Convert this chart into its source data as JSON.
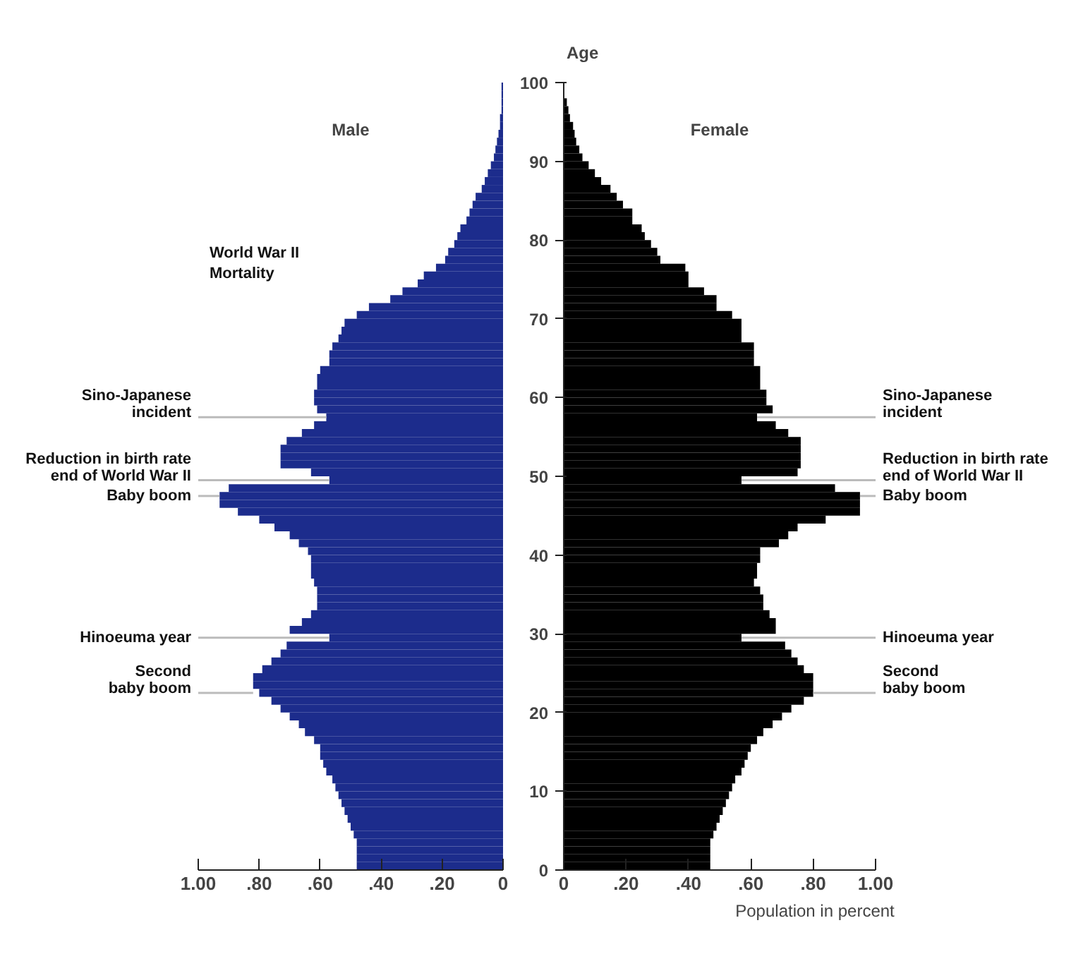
{
  "chart_data": [
    {
      "type": "bar",
      "orientation": "horizontal",
      "title": "Male",
      "color": "#1c2c8c",
      "tick_labels": "x",
      "x": [
        0,
        1,
        2,
        3,
        4,
        5,
        6,
        7,
        8,
        9,
        10,
        11,
        12,
        13,
        14,
        15,
        16,
        17,
        18,
        19,
        20,
        21,
        22,
        23,
        24,
        25,
        26,
        27,
        28,
        29,
        30,
        31,
        32,
        33,
        34,
        35,
        36,
        37,
        38,
        39,
        40,
        41,
        42,
        43,
        44,
        45,
        46,
        47,
        48,
        49,
        50,
        51,
        52,
        53,
        54,
        55,
        56,
        57,
        58,
        59,
        60,
        61,
        62,
        63,
        64,
        65,
        66,
        67,
        68,
        69,
        70,
        71,
        72,
        73,
        74,
        75,
        76,
        77,
        78,
        79,
        80,
        81,
        82,
        83,
        84,
        85,
        86,
        87,
        88,
        89,
        90,
        91,
        92,
        93,
        94,
        95,
        96,
        97,
        98,
        99
      ],
      "values": [
        0.48,
        0.48,
        0.48,
        0.48,
        0.49,
        0.5,
        0.51,
        0.52,
        0.53,
        0.54,
        0.55,
        0.56,
        0.58,
        0.59,
        0.6,
        0.6,
        0.62,
        0.65,
        0.67,
        0.7,
        0.73,
        0.76,
        0.8,
        0.82,
        0.82,
        0.79,
        0.76,
        0.73,
        0.71,
        0.57,
        0.7,
        0.66,
        0.63,
        0.61,
        0.61,
        0.61,
        0.62,
        0.63,
        0.63,
        0.63,
        0.64,
        0.67,
        0.7,
        0.75,
        0.8,
        0.87,
        0.93,
        0.93,
        0.9,
        0.57,
        0.63,
        0.73,
        0.73,
        0.73,
        0.71,
        0.66,
        0.62,
        0.58,
        0.61,
        0.62,
        0.62,
        0.61,
        0.61,
        0.6,
        0.57,
        0.57,
        0.56,
        0.54,
        0.53,
        0.52,
        0.48,
        0.44,
        0.37,
        0.33,
        0.28,
        0.26,
        0.22,
        0.19,
        0.18,
        0.16,
        0.15,
        0.14,
        0.12,
        0.11,
        0.1,
        0.09,
        0.07,
        0.06,
        0.05,
        0.04,
        0.03,
        0.025,
        0.02,
        0.015,
        0.01,
        0.01,
        0.005,
        0.005,
        0.005,
        0.005
      ],
      "xlim": [
        1.0,
        0
      ],
      "xticks": [
        {
          "value": 1.0,
          "label": "1.00"
        },
        {
          "value": 0.8,
          "label": ".80"
        },
        {
          "value": 0.6,
          "label": ".60"
        },
        {
          "value": 0.4,
          "label": ".40"
        },
        {
          "value": 0.2,
          "label": ".20"
        },
        0
      ],
      "ylim": [
        0,
        100
      ],
      "yticks": [
        0,
        10,
        20,
        30,
        40,
        50,
        60,
        70,
        80,
        90,
        100
      ],
      "annotations": [
        "World War II\nMortality",
        {
          "text": "Sino-Japanese\nincident",
          "x": 0.58,
          "y": 57
        },
        {
          "text": "Reduction in birth rate\nend of World War II",
          "x": 0.57,
          "y": 49
        },
        {
          "text": "Baby boom",
          "x": 0.93,
          "y": 47
        },
        {
          "text": "Hinoeuma year",
          "x": 0.57,
          "y": 29
        },
        {
          "text": "Second\nbaby boom",
          "x": 0.82,
          "y": 22
        }
      ]
    },
    {
      "type": "bar",
      "orientation": "horizontal",
      "title": "Female",
      "color": "#000000",
      "ylabel": "Age",
      "xlabel": "Population in percent",
      "x": [
        0,
        1,
        2,
        3,
        4,
        5,
        6,
        7,
        8,
        9,
        10,
        11,
        12,
        13,
        14,
        15,
        16,
        17,
        18,
        19,
        20,
        21,
        22,
        23,
        24,
        25,
        26,
        27,
        28,
        29,
        30,
        31,
        32,
        33,
        34,
        35,
        36,
        37,
        38,
        39,
        40,
        41,
        42,
        43,
        44,
        45,
        46,
        47,
        48,
        49,
        50,
        51,
        52,
        53,
        54,
        55,
        56,
        57,
        58,
        59,
        60,
        61,
        62,
        63,
        64,
        65,
        66,
        67,
        68,
        69,
        70,
        71,
        72,
        73,
        74,
        75,
        76,
        77,
        78,
        79,
        80,
        81,
        82,
        83,
        84,
        85,
        86,
        87,
        88,
        89,
        90,
        91,
        92,
        93,
        94,
        95,
        96,
        97
      ],
      "values": [
        0.47,
        0.47,
        0.47,
        0.47,
        0.48,
        0.49,
        0.5,
        0.51,
        0.52,
        0.53,
        0.54,
        0.55,
        0.57,
        0.58,
        0.59,
        0.6,
        0.62,
        0.64,
        0.67,
        0.7,
        0.73,
        0.77,
        0.8,
        0.8,
        0.8,
        0.77,
        0.75,
        0.73,
        0.71,
        0.57,
        0.68,
        0.68,
        0.66,
        0.64,
        0.64,
        0.63,
        0.61,
        0.62,
        0.62,
        0.63,
        0.63,
        0.69,
        0.72,
        0.75,
        0.84,
        0.95,
        0.95,
        0.95,
        0.87,
        0.57,
        0.75,
        0.76,
        0.76,
        0.76,
        0.76,
        0.72,
        0.68,
        0.62,
        0.67,
        0.65,
        0.65,
        0.63,
        0.63,
        0.63,
        0.61,
        0.61,
        0.61,
        0.57,
        0.57,
        0.57,
        0.54,
        0.49,
        0.49,
        0.45,
        0.4,
        0.4,
        0.39,
        0.31,
        0.3,
        0.28,
        0.26,
        0.25,
        0.22,
        0.22,
        0.19,
        0.17,
        0.15,
        0.12,
        0.1,
        0.08,
        0.06,
        0.05,
        0.04,
        0.035,
        0.03,
        0.02,
        0.015,
        0.01
      ],
      "xlim": [
        0,
        1.0
      ],
      "xticks": [
        0,
        {
          "value": 0.2,
          "label": ".20"
        },
        {
          "value": 0.4,
          "label": ".40"
        },
        {
          "value": 0.6,
          "label": ".60"
        },
        {
          "value": 0.8,
          "label": ".80"
        },
        {
          "value": 1.0,
          "label": "1.00"
        }
      ],
      "ylim": [
        0,
        100
      ],
      "yticks": [
        0,
        10,
        20,
        30,
        40,
        50,
        60,
        70,
        80,
        90,
        100
      ],
      "annotations": [
        {
          "text": "Sino-Japanese\nincident",
          "x": 0.62,
          "y": 57
        },
        {
          "text": "Reduction in birth rate\nend of World War II",
          "x": 0.57,
          "y": 49
        },
        {
          "text": "Baby boom",
          "x": 0.95,
          "y": 47
        },
        {
          "text": "Hinoeuma year",
          "x": 0.57,
          "y": 29
        },
        {
          "text": "Second\nbaby boom",
          "x": 0.8,
          "y": 22
        }
      ]
    }
  ]
}
